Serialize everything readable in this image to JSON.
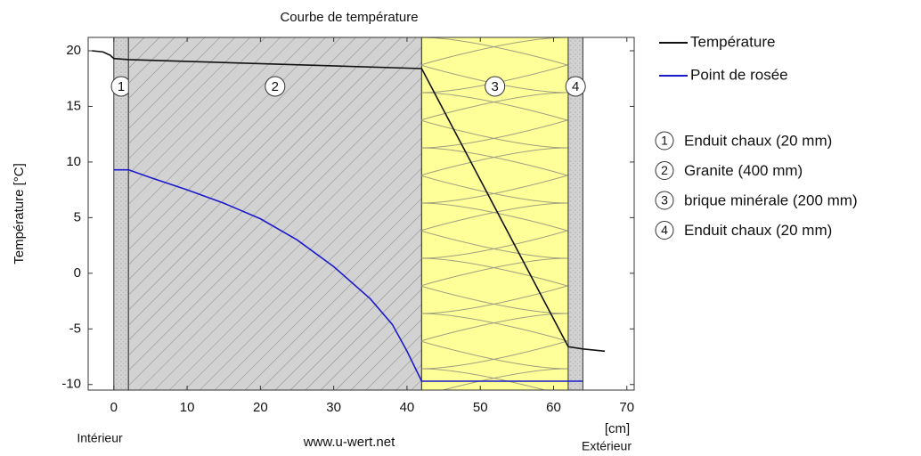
{
  "chart_data": {
    "type": "line",
    "title": "Courbe de température",
    "y_label": "Température [°C]",
    "x_unit": "[cm]",
    "left_label": "Intérieur",
    "right_label": "Extérieur",
    "source": "www.u-wert.net",
    "xlim": [
      -3.5,
      71
    ],
    "ylim": [
      -10.5,
      21.2
    ],
    "xticks": [
      0,
      10,
      20,
      30,
      40,
      50,
      60,
      70
    ],
    "yticks": [
      20,
      15,
      10,
      5,
      0,
      -5,
      -10
    ],
    "layers": [
      {
        "number": "1",
        "name": "Enduit chaux (20 mm)",
        "start": 0,
        "end": 2,
        "color": "#d2d2d2",
        "texture": "dots"
      },
      {
        "number": "2",
        "name": "Granite (400 mm)",
        "start": 2,
        "end": 42,
        "color": "#d2d2d2",
        "texture": "hatch"
      },
      {
        "number": "3",
        "name": "brique minérale (200 mm)",
        "start": 42,
        "end": 62,
        "color": "#ffff99",
        "texture": "wool"
      },
      {
        "number": "4",
        "name": "Enduit chaux (20 mm)",
        "start": 62,
        "end": 64,
        "color": "#d2d2d2",
        "texture": "dots"
      }
    ],
    "series": [
      {
        "name": "Température",
        "color": "#111111",
        "x": [
          -3,
          -1.5,
          -0.5,
          0,
          2,
          42,
          62,
          64,
          65.5,
          67
        ],
        "values": [
          20,
          19.9,
          19.6,
          19.3,
          19.2,
          18.4,
          -6.6,
          -6.8,
          -6.9,
          -7
        ]
      },
      {
        "name": "Point de rosée",
        "color": "#1a1acc",
        "x": [
          0,
          2,
          5,
          10,
          15,
          20,
          25,
          30,
          35,
          38,
          40,
          42,
          62,
          64
        ],
        "values": [
          9.3,
          9.3,
          8.6,
          7.5,
          6.3,
          4.9,
          3.0,
          0.6,
          -2.3,
          -4.6,
          -7,
          -9.7,
          -9.7,
          -9.7
        ]
      }
    ]
  }
}
